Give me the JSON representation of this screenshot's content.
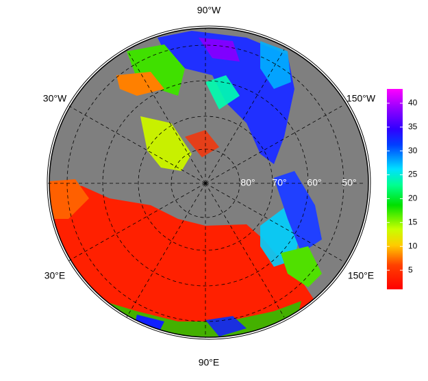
{
  "map": {
    "longitude_labels": [
      "90°W",
      "30°W",
      "150°W",
      "30°E",
      "150°E",
      "90°E"
    ],
    "latitude_labels": [
      "80°",
      "70°",
      "60°",
      "50°"
    ],
    "colorbar": {
      "range": [
        1,
        43
      ],
      "ticks": [
        5,
        10,
        15,
        20,
        25,
        30,
        35,
        40
      ]
    }
  }
}
